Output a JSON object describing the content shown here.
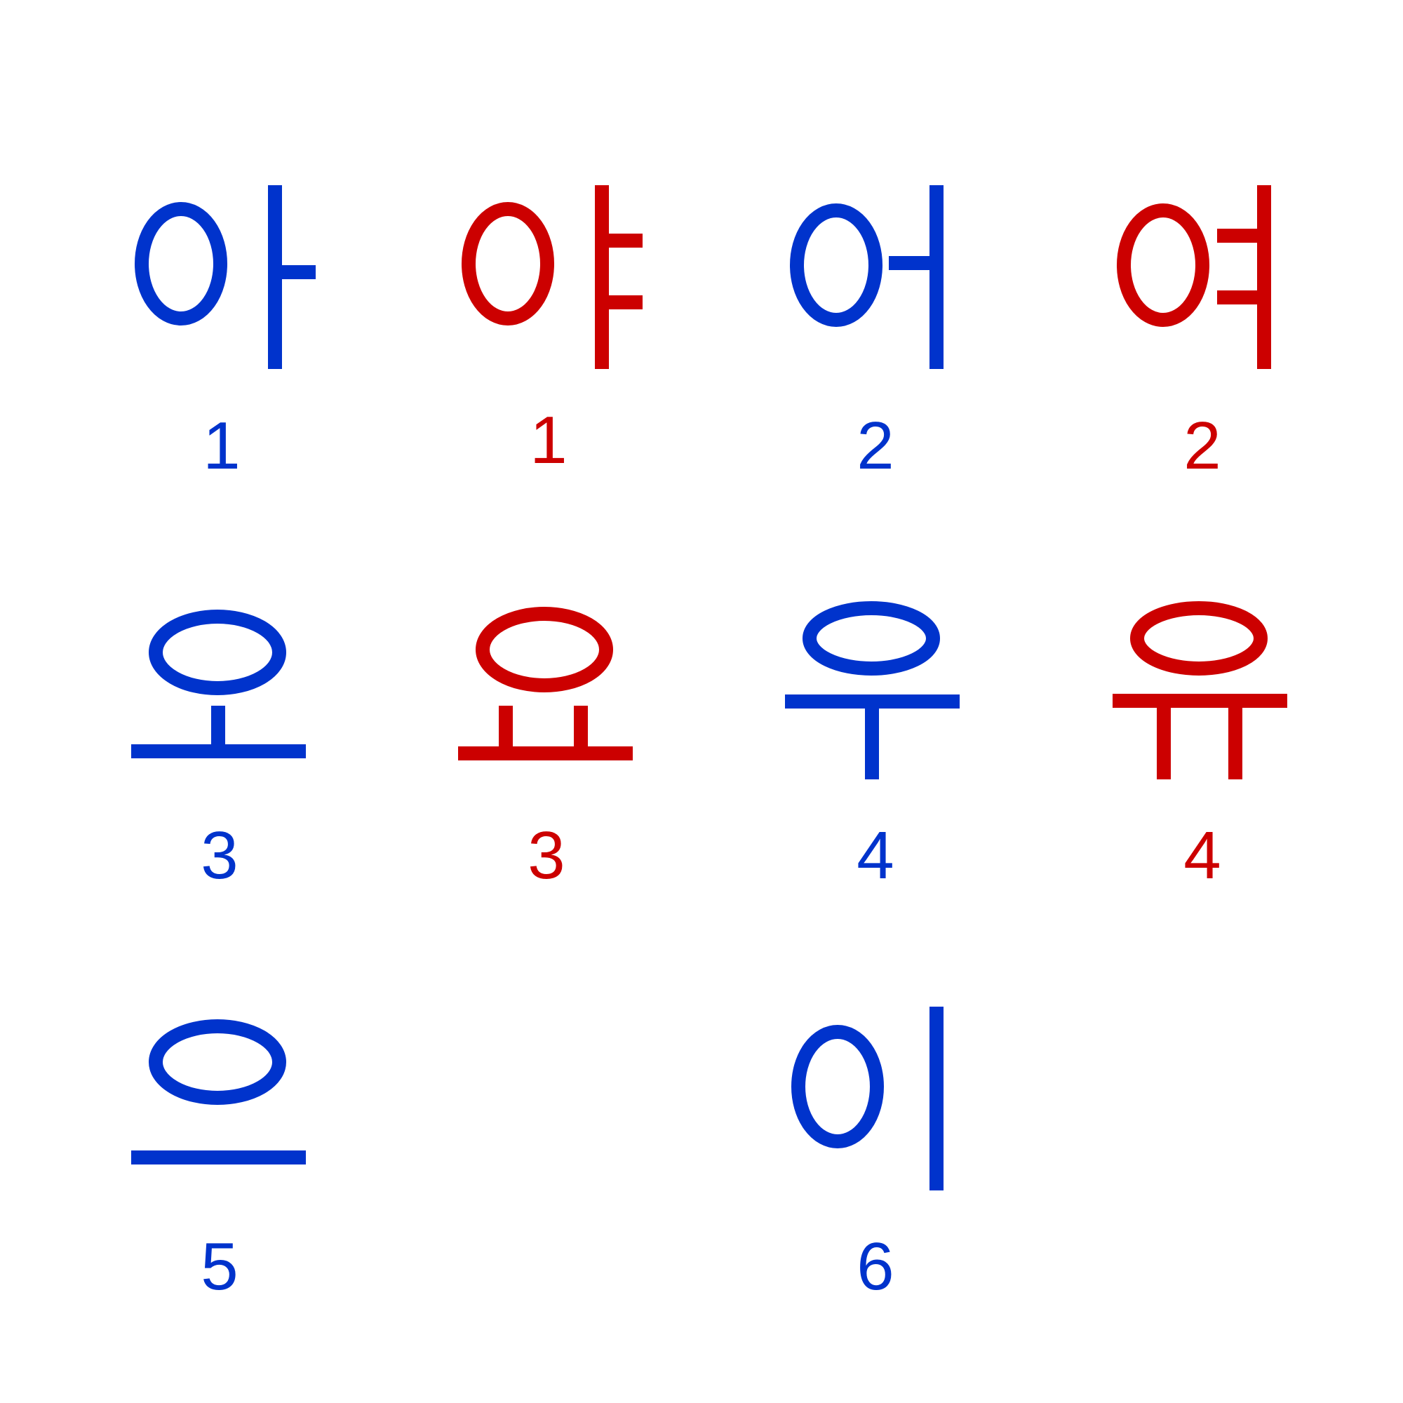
{
  "colors": {
    "yang": "#0033cc",
    "yin": "#cc0000"
  },
  "vowels": [
    {
      "char": "아",
      "number": "1",
      "color": "yang"
    },
    {
      "char": "야",
      "number": "1",
      "color": "yin"
    },
    {
      "char": "어",
      "number": "2",
      "color": "yang"
    },
    {
      "char": "여",
      "number": "2",
      "color": "yin"
    },
    {
      "char": "오",
      "number": "3",
      "color": "yang"
    },
    {
      "char": "요",
      "number": "3",
      "color": "yin"
    },
    {
      "char": "우",
      "number": "4",
      "color": "yang"
    },
    {
      "char": "유",
      "number": "4",
      "color": "yin"
    },
    {
      "char": "으",
      "number": "5",
      "color": "yang"
    },
    {
      "char": "이",
      "number": "6",
      "color": "yang"
    }
  ]
}
